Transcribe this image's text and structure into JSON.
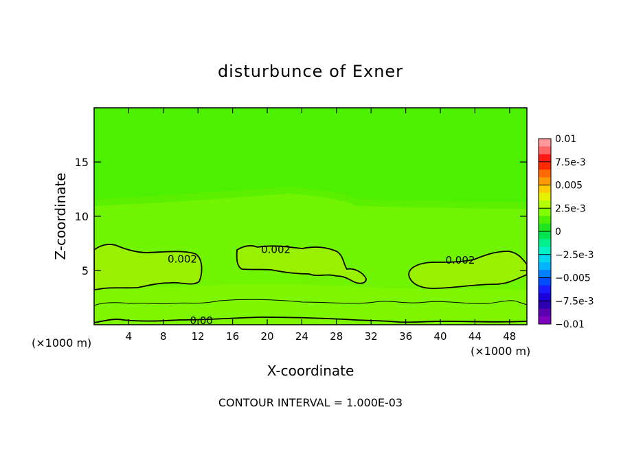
{
  "chart_data": {
    "type": "contour",
    "title": "disturbunce of Exner",
    "xlabel": "X-coordinate",
    "ylabel": "Z-coordinate",
    "x_unit_left": "(×1000 m)",
    "x_unit_right": "(×1000 m)",
    "xlim": [
      0,
      50
    ],
    "ylim": [
      0,
      20
    ],
    "x_ticks": [
      4,
      8,
      12,
      16,
      20,
      24,
      28,
      32,
      36,
      40,
      44,
      48
    ],
    "y_ticks": [
      5,
      10,
      15
    ],
    "footer": "CONTOUR INTERVAL = 1.000E-03",
    "contour_labels": [
      {
        "text": "0.002",
        "x": 10.2,
        "z": 6.1
      },
      {
        "text": "0.002",
        "x": 21.0,
        "z": 7.0
      },
      {
        "text": "0.002",
        "x": 42.3,
        "z": 6.0
      },
      {
        "text": "0.00",
        "x": 12.4,
        "z": 0.45
      }
    ],
    "colorbar": {
      "labels": [
        "0.01",
        "7.5e-3",
        "0.005",
        "2.5e-3",
        "0",
        "−2.5e-3",
        "−0.005",
        "−7.5e-3",
        "−0.01"
      ],
      "colors": [
        "#ff9999",
        "#ff6666",
        "#ff1a1a",
        "#ff2a00",
        "#ff6a00",
        "#ff9900",
        "#ffcc00",
        "#e6f000",
        "#b3ff00",
        "#80ff00",
        "#4cf000",
        "#1ee61e",
        "#00e650",
        "#00f08c",
        "#00f0c8",
        "#00d8f0",
        "#00b4ff",
        "#0080ff",
        "#004cff",
        "#1a1aff",
        "#1a00dd",
        "#2a00b0",
        "#5a00b0",
        "#8000c0"
      ]
    },
    "bands": {
      "colors": [
        "#4cf000",
        "#66f200",
        "#80f400",
        "#99f000",
        "#3ce81e",
        "#1ee632"
      ]
    }
  }
}
